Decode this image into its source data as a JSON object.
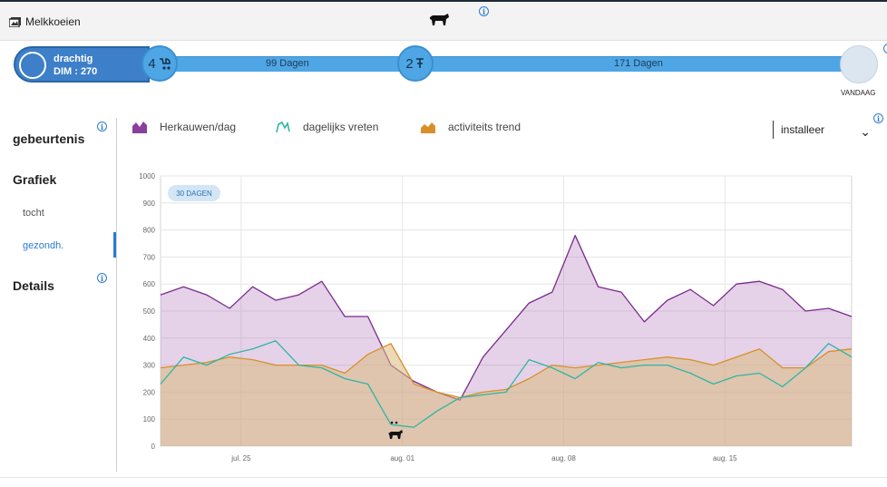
{
  "header": {
    "app_label": "Melkkoeien"
  },
  "timeline": {
    "status_title": "drachtig",
    "status_dim": "DIM : 270",
    "node1_number": "4",
    "node2_number": "2",
    "segment1_label": "99 Dagen",
    "segment2_label": "171 Dagen",
    "end_label": "VANDAAG"
  },
  "sidebar": {
    "gebeurtenis": "gebeurtenis",
    "grafiek": "Grafiek",
    "tocht": "tocht",
    "gezondh": "gezondh.",
    "details": "Details"
  },
  "legend": {
    "herkauwen": "Herkauwen/dag",
    "vreten": "dagelijks vreten",
    "activiteit": "activiteits trend"
  },
  "select": {
    "value": "installeer"
  },
  "colors": {
    "accent": "#2a7bd1",
    "herkauwen": "#7b2a8c",
    "vreten": "#2fb5a3",
    "activiteit": "#d98f28"
  },
  "chart_data": {
    "type": "area",
    "badge": "30 DAGEN",
    "ylim": [
      0,
      1000
    ],
    "yticks": [
      "0",
      "100",
      "200",
      "300",
      "400",
      "500",
      "600",
      "700",
      "800",
      "900",
      "1000"
    ],
    "xticks": [
      "jul. 25",
      "aug. 01",
      "aug. 08",
      "aug. 15"
    ],
    "xtick_positions": [
      3.5,
      10.5,
      17.5,
      24.5
    ],
    "x": [
      0,
      1,
      2,
      3,
      4,
      5,
      6,
      7,
      8,
      9,
      10,
      11,
      12,
      13,
      14,
      15,
      16,
      17,
      18,
      19,
      20,
      21,
      22,
      23,
      24,
      25,
      26,
      27,
      28,
      29,
      30
    ],
    "series": [
      {
        "name": "Herkauwen/dag",
        "values": [
          560,
          590,
          560,
          510,
          590,
          540,
          560,
          610,
          480,
          480,
          300,
          240,
          200,
          170,
          330,
          430,
          530,
          570,
          780,
          590,
          570,
          460,
          540,
          580,
          520,
          600,
          610,
          580,
          500,
          510,
          480
        ]
      },
      {
        "name": "dagelijks vreten",
        "values": [
          230,
          330,
          300,
          340,
          360,
          390,
          300,
          290,
          250,
          230,
          80,
          70,
          130,
          180,
          190,
          200,
          320,
          290,
          250,
          310,
          290,
          300,
          300,
          270,
          230,
          260,
          270,
          220,
          290,
          380,
          330
        ]
      },
      {
        "name": "activiteits trend",
        "values": [
          290,
          300,
          310,
          330,
          320,
          300,
          300,
          300,
          270,
          340,
          380,
          230,
          200,
          180,
          200,
          210,
          250,
          300,
          290,
          300,
          310,
          320,
          330,
          320,
          300,
          330,
          360,
          290,
          290,
          350,
          360
        ]
      }
    ]
  }
}
